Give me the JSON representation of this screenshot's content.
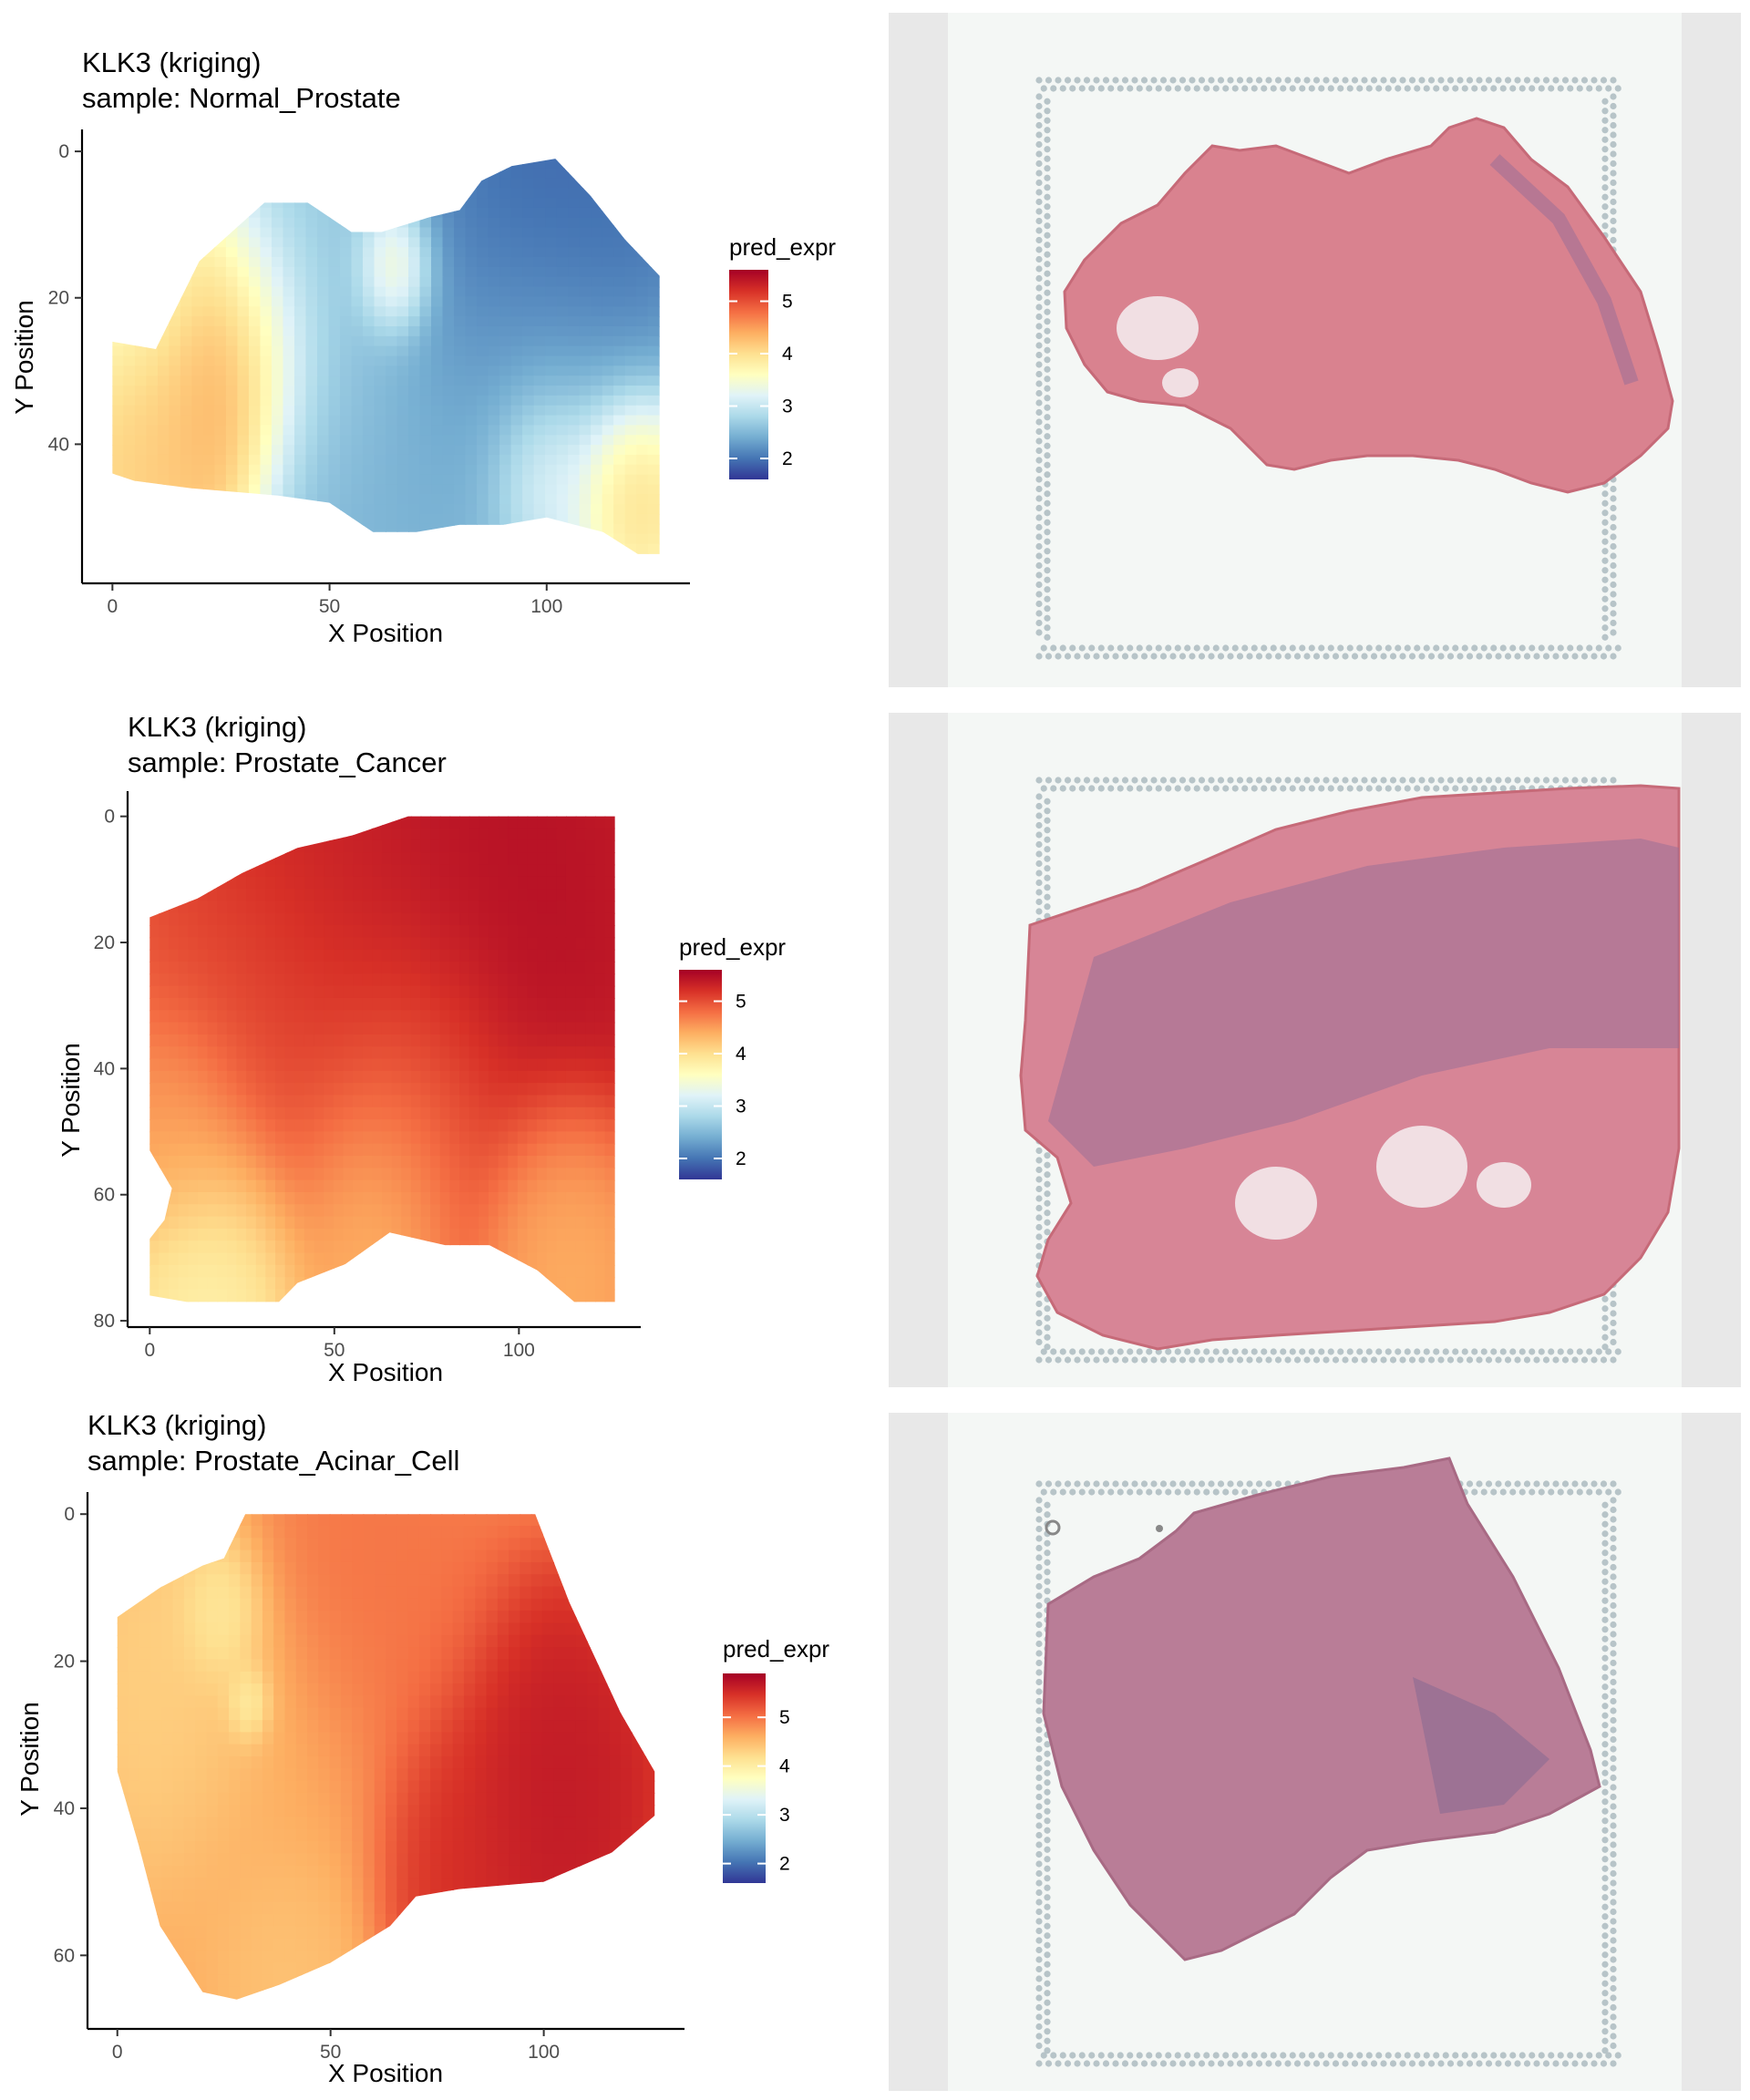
{
  "colors": {
    "scale": [
      "#313695",
      "#4575b4",
      "#74add1",
      "#abd9e9",
      "#e0f3f8",
      "#ffffbf",
      "#fee090",
      "#fdae61",
      "#f46d43",
      "#d73027",
      "#a50026"
    ],
    "axis": "#000000",
    "tick_text": "#4d4d4d",
    "slide_frame": "#e8e8e8",
    "slide_bg": "#f4f7f5",
    "fiducial_dot": "#b7c4c8",
    "tissue": "#d9828f",
    "tissue_dense": "#9b6f98"
  },
  "chart_data": [
    {
      "type": "heatmap",
      "title": "KLK3 (kriging)",
      "subtitle": "sample: Normal_Prostate",
      "xlabel": "X Position",
      "ylabel": "Y Position",
      "xlim": [
        -7,
        133
      ],
      "ylim": [
        -3,
        59
      ],
      "y_reversed": true,
      "xticks": [
        0,
        50,
        100
      ],
      "yticks": [
        0,
        20,
        40
      ],
      "legend_title": "pred_expr",
      "legend_position": "right",
      "color_range": [
        1.6,
        5.6
      ],
      "legend_ticks": [
        2,
        3,
        4,
        5
      ],
      "outline": [
        [
          10,
          27
        ],
        [
          20,
          15
        ],
        [
          35,
          7
        ],
        [
          45,
          7
        ],
        [
          55,
          11
        ],
        [
          62,
          11
        ],
        [
          73,
          9
        ],
        [
          80,
          8
        ],
        [
          85,
          4
        ],
        [
          92,
          2
        ],
        [
          102,
          1
        ],
        [
          110,
          6
        ],
        [
          118,
          12
        ],
        [
          126,
          17
        ],
        [
          126,
          55
        ],
        [
          121,
          55
        ],
        [
          113,
          52
        ],
        [
          100,
          50
        ],
        [
          90,
          51
        ],
        [
          80,
          51
        ],
        [
          70,
          52
        ],
        [
          60,
          52
        ],
        [
          50,
          48
        ],
        [
          38,
          47
        ],
        [
          18,
          46
        ],
        [
          5,
          45
        ],
        [
          0,
          44
        ],
        [
          0,
          26
        ]
      ],
      "features": [
        {
          "x": 95,
          "y": 20,
          "value": 1.7,
          "spread": 15
        },
        {
          "x": 110,
          "y": 10,
          "value": 1.9,
          "spread": 12
        },
        {
          "x": 70,
          "y": 38,
          "value": 2.4,
          "spread": 18
        },
        {
          "x": 50,
          "y": 27,
          "value": 2.7,
          "spread": 12
        },
        {
          "x": 38,
          "y": 16,
          "value": 2.6,
          "spread": 10
        },
        {
          "x": 100,
          "y": 32,
          "value": 2.8,
          "spread": 14
        },
        {
          "x": 20,
          "y": 30,
          "value": 4.6,
          "spread": 11
        },
        {
          "x": 30,
          "y": 25,
          "value": 4.7,
          "spread": 9
        },
        {
          "x": 10,
          "y": 38,
          "value": 4.1,
          "spread": 9
        },
        {
          "x": 65,
          "y": 17,
          "value": 4.2,
          "spread": 5
        },
        {
          "x": 117,
          "y": 45,
          "value": 4.3,
          "spread": 7
        },
        {
          "x": 100,
          "y": 43,
          "value": 3.7,
          "spread": 7
        },
        {
          "x": 10,
          "y": 20,
          "value": 3.3,
          "spread": 10
        }
      ]
    },
    {
      "type": "heatmap",
      "title": "KLK3 (kriging)",
      "subtitle": "sample: Prostate_Cancer",
      "xlabel": "X Position",
      "ylabel": "Y Position",
      "xlim": [
        -6,
        133
      ],
      "ylim": [
        -4,
        81
      ],
      "y_reversed": true,
      "xticks": [
        0,
        50,
        100
      ],
      "yticks": [
        0,
        20,
        40,
        60,
        80
      ],
      "legend_title": "pred_expr",
      "legend_position": "right",
      "color_range": [
        1.6,
        5.6
      ],
      "legend_ticks": [
        2,
        3,
        4,
        5
      ],
      "outline": [
        [
          0,
          16
        ],
        [
          13,
          13
        ],
        [
          25,
          9
        ],
        [
          40,
          5
        ],
        [
          55,
          3
        ],
        [
          70,
          0
        ],
        [
          126,
          0
        ],
        [
          126,
          77
        ],
        [
          115,
          77
        ],
        [
          105,
          72
        ],
        [
          92,
          68
        ],
        [
          80,
          68
        ],
        [
          65,
          66
        ],
        [
          53,
          71
        ],
        [
          40,
          74
        ],
        [
          35,
          77
        ],
        [
          10,
          77
        ],
        [
          0,
          76
        ],
        [
          0,
          67
        ],
        [
          4,
          64
        ],
        [
          6,
          59
        ],
        [
          2,
          55
        ],
        [
          0,
          53
        ]
      ],
      "features": [
        {
          "x": 90,
          "y": 15,
          "value": 5.5,
          "spread": 28
        },
        {
          "x": 50,
          "y": 20,
          "value": 5.3,
          "spread": 22
        },
        {
          "x": 30,
          "y": 40,
          "value": 4.9,
          "spread": 18
        },
        {
          "x": 70,
          "y": 45,
          "value": 4.7,
          "spread": 15
        },
        {
          "x": 20,
          "y": 68,
          "value": 3.6,
          "spread": 12
        },
        {
          "x": 60,
          "y": 60,
          "value": 4.1,
          "spread": 12
        },
        {
          "x": 110,
          "y": 65,
          "value": 4.3,
          "spread": 12
        },
        {
          "x": 10,
          "y": 50,
          "value": 4.4,
          "spread": 10
        }
      ]
    },
    {
      "type": "heatmap",
      "title": "KLK3 (kriging)",
      "subtitle": "sample: Prostate_Acinar_Cell",
      "xlabel": "X Position",
      "ylabel": "Y Position",
      "xlim": [
        -7,
        133
      ],
      "ylim": [
        -3,
        70
      ],
      "y_reversed": true,
      "xticks": [
        0,
        50,
        100
      ],
      "yticks": [
        0,
        20,
        40,
        60
      ],
      "legend_title": "pred_expr",
      "legend_position": "right",
      "color_range": [
        1.6,
        5.9
      ],
      "legend_ticks": [
        2,
        3,
        4,
        5
      ],
      "outline": [
        [
          0,
          14
        ],
        [
          10,
          10
        ],
        [
          20,
          7
        ],
        [
          25,
          6
        ],
        [
          30,
          0
        ],
        [
          98,
          0
        ],
        [
          106,
          12
        ],
        [
          118,
          27
        ],
        [
          126,
          35
        ],
        [
          126,
          41
        ],
        [
          116,
          46
        ],
        [
          100,
          50
        ],
        [
          80,
          51
        ],
        [
          70,
          52
        ],
        [
          64,
          56
        ],
        [
          50,
          61
        ],
        [
          38,
          64
        ],
        [
          28,
          66
        ],
        [
          20,
          65
        ],
        [
          10,
          56
        ],
        [
          5,
          45
        ],
        [
          0,
          35
        ]
      ],
      "features": [
        {
          "x": 100,
          "y": 38,
          "value": 5.7,
          "spread": 14
        },
        {
          "x": 78,
          "y": 45,
          "value": 5.5,
          "spread": 10
        },
        {
          "x": 60,
          "y": 15,
          "value": 5.0,
          "spread": 15
        },
        {
          "x": 20,
          "y": 25,
          "value": 4.3,
          "spread": 12
        },
        {
          "x": 40,
          "y": 40,
          "value": 4.6,
          "spread": 14
        },
        {
          "x": 25,
          "y": 15,
          "value": 3.9,
          "spread": 5
        },
        {
          "x": 31,
          "y": 26,
          "value": 3.6,
          "spread": 3
        },
        {
          "x": 40,
          "y": 58,
          "value": 4.4,
          "spread": 8
        }
      ]
    }
  ]
}
